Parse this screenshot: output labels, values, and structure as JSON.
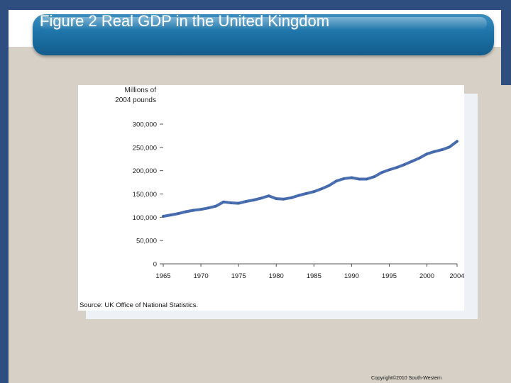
{
  "slide": {
    "title": "Figure 2 Real GDP in the United Kingdom",
    "copyright": "Copyright©2010  South-Western"
  },
  "colors": {
    "frame": "#2d4e7e",
    "title_bar": "#1d74a8",
    "line": "#4a6fb0"
  },
  "chart_data": {
    "type": "line",
    "title": "Figure 2 Real GDP in the United Kingdom",
    "ylabel_lines": [
      "Millions of",
      "2004 pounds"
    ],
    "xlabel": "",
    "source": "Source: UK Office of National Statistics.",
    "xlim": [
      1965,
      2004
    ],
    "ylim": [
      0,
      300000
    ],
    "xticks": [
      1965,
      1970,
      1975,
      1980,
      1985,
      1990,
      1995,
      2000,
      2004
    ],
    "xtick_labels": [
      "1965",
      "1970",
      "1975",
      "1980",
      "1985",
      "1990",
      "1995",
      "2000",
      "2004"
    ],
    "yticks": [
      0,
      50000,
      100000,
      150000,
      200000,
      250000,
      300000
    ],
    "ytick_labels": [
      "0",
      "50,000",
      "100,000",
      "150,000",
      "200,000",
      "250,000",
      "300,000"
    ],
    "series": [
      {
        "name": "Real GDP",
        "x": [
          1965,
          1966,
          1967,
          1968,
          1969,
          1970,
          1971,
          1972,
          1973,
          1974,
          1975,
          1976,
          1977,
          1978,
          1979,
          1980,
          1981,
          1982,
          1983,
          1984,
          1985,
          1986,
          1987,
          1988,
          1989,
          1990,
          1991,
          1992,
          1993,
          1994,
          1995,
          1996,
          1997,
          1998,
          1999,
          2000,
          2001,
          2002,
          2003,
          2004
        ],
        "values": [
          102000,
          105000,
          108000,
          112000,
          115000,
          117000,
          120000,
          124000,
          133000,
          131000,
          130000,
          134000,
          137000,
          141000,
          146000,
          140000,
          139000,
          142000,
          147000,
          151000,
          155000,
          161000,
          168000,
          178000,
          183000,
          185000,
          182000,
          182000,
          187000,
          196000,
          202000,
          207000,
          213000,
          220000,
          227000,
          236000,
          241000,
          245000,
          251000,
          263000
        ]
      }
    ]
  }
}
